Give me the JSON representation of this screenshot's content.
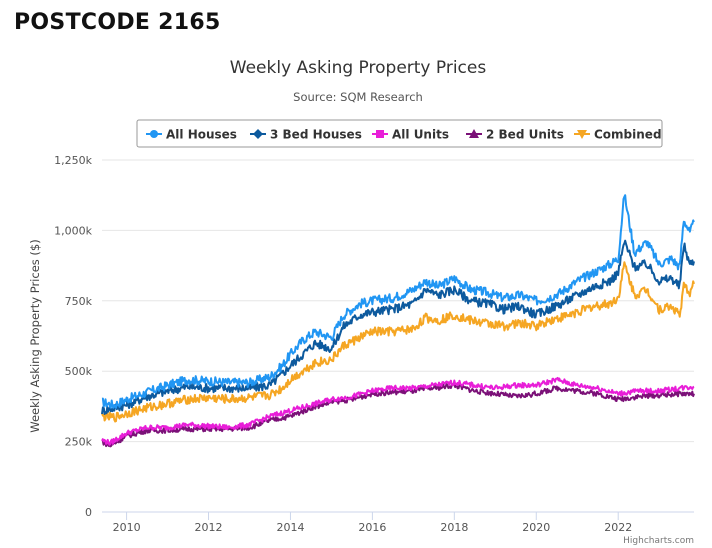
{
  "page": {
    "heading": "POSTCODE 2165"
  },
  "chart_data": {
    "type": "line",
    "title": "Weekly Asking Property Prices",
    "subtitle": "Source: SQM Research",
    "ylabel": "Weekly Asking Property Prices ($)",
    "xlabel": "",
    "ylim": [
      0,
      1250000
    ],
    "xlim": [
      2009.4,
      2023.85
    ],
    "y_ticks": [
      0,
      250000,
      500000,
      750000,
      1000000,
      1250000
    ],
    "y_tick_labels": [
      "0",
      "250k",
      "500k",
      "750k",
      "1,000k",
      "1,250k"
    ],
    "x_ticks": [
      2010,
      2012,
      2014,
      2016,
      2018,
      2020,
      2022
    ],
    "x_tick_labels": [
      "2010",
      "2012",
      "2014",
      "2016",
      "2018",
      "2020",
      "2022"
    ],
    "grid": true,
    "legend_position": "top",
    "credit": "Highcharts.com",
    "series": [
      {
        "name": "All Houses",
        "color": "#2196f3",
        "marker": "circle",
        "x": [
          2009.4,
          2009.7,
          2010.0,
          2010.5,
          2011.0,
          2011.5,
          2012.0,
          2012.5,
          2013.0,
          2013.5,
          2013.8,
          2014.0,
          2014.3,
          2014.6,
          2015.0,
          2015.3,
          2015.7,
          2016.0,
          2016.5,
          2017.0,
          2017.3,
          2017.6,
          2018.0,
          2018.4,
          2018.8,
          2019.2,
          2019.6,
          2020.0,
          2020.3,
          2020.6,
          2021.0,
          2021.4,
          2021.8,
          2022.0,
          2022.15,
          2022.4,
          2022.7,
          2023.0,
          2023.3,
          2023.5,
          2023.6,
          2023.75,
          2023.85
        ],
        "values": [
          390000,
          380000,
          400000,
          425000,
          450000,
          470000,
          465000,
          460000,
          460000,
          480000,
          520000,
          560000,
          610000,
          640000,
          620000,
          700000,
          740000,
          750000,
          760000,
          790000,
          820000,
          800000,
          830000,
          790000,
          780000,
          760000,
          770000,
          750000,
          760000,
          780000,
          820000,
          850000,
          880000,
          900000,
          1130000,
          920000,
          960000,
          880000,
          900000,
          870000,
          1040000,
          990000,
          1030000
        ]
      },
      {
        "name": "3 Bed Houses",
        "color": "#0d5a9e",
        "marker": "diamond",
        "x": [
          2009.4,
          2009.7,
          2010.0,
          2010.5,
          2011.0,
          2011.5,
          2012.0,
          2012.5,
          2013.0,
          2013.5,
          2013.8,
          2014.0,
          2014.3,
          2014.6,
          2015.0,
          2015.3,
          2015.7,
          2016.0,
          2016.5,
          2017.0,
          2017.3,
          2017.6,
          2018.0,
          2018.4,
          2018.8,
          2019.2,
          2019.6,
          2020.0,
          2020.3,
          2020.6,
          2021.0,
          2021.4,
          2021.8,
          2022.0,
          2022.15,
          2022.4,
          2022.7,
          2023.0,
          2023.3,
          2023.5,
          2023.6,
          2023.75,
          2023.85
        ],
        "values": [
          360000,
          370000,
          380000,
          410000,
          430000,
          445000,
          440000,
          440000,
          440000,
          450000,
          490000,
          520000,
          560000,
          600000,
          580000,
          660000,
          700000,
          710000,
          720000,
          740000,
          790000,
          770000,
          790000,
          750000,
          740000,
          720000,
          730000,
          700000,
          720000,
          740000,
          770000,
          800000,
          820000,
          850000,
          960000,
          870000,
          880000,
          820000,
          830000,
          800000,
          950000,
          880000,
          890000
        ]
      },
      {
        "name": "All Units",
        "color": "#e81ed8",
        "marker": "square",
        "x": [
          2009.4,
          2009.6,
          2010.0,
          2010.5,
          2011.0,
          2011.5,
          2012.0,
          2012.5,
          2013.0,
          2013.5,
          2014.0,
          2014.5,
          2015.0,
          2015.5,
          2016.0,
          2016.5,
          2017.0,
          2017.5,
          2018.0,
          2018.5,
          2019.0,
          2019.5,
          2020.0,
          2020.5,
          2021.0,
          2021.5,
          2022.0,
          2022.5,
          2023.0,
          2023.5,
          2023.85
        ],
        "values": [
          255000,
          245000,
          280000,
          300000,
          300000,
          310000,
          305000,
          300000,
          310000,
          340000,
          360000,
          380000,
          400000,
          410000,
          430000,
          440000,
          440000,
          450000,
          460000,
          450000,
          440000,
          450000,
          450000,
          470000,
          450000,
          440000,
          420000,
          430000,
          430000,
          440000,
          445000
        ]
      },
      {
        "name": "2 Bed Units",
        "color": "#7b1178",
        "marker": "triangle",
        "x": [
          2009.4,
          2009.6,
          2010.0,
          2010.5,
          2011.0,
          2011.5,
          2012.0,
          2012.5,
          2013.0,
          2013.5,
          2014.0,
          2014.5,
          2015.0,
          2015.5,
          2016.0,
          2016.5,
          2017.0,
          2017.5,
          2018.0,
          2018.5,
          2019.0,
          2019.5,
          2020.0,
          2020.5,
          2021.0,
          2021.5,
          2022.0,
          2022.5,
          2023.0,
          2023.5,
          2023.85
        ],
        "values": [
          250000,
          235000,
          270000,
          290000,
          290000,
          295000,
          295000,
          295000,
          300000,
          325000,
          340000,
          370000,
          390000,
          400000,
          420000,
          425000,
          430000,
          440000,
          450000,
          430000,
          420000,
          410000,
          420000,
          440000,
          430000,
          420000,
          400000,
          410000,
          415000,
          420000,
          420000
        ]
      },
      {
        "name": "Combined",
        "color": "#f5a623",
        "marker": "triangle-down",
        "x": [
          2009.4,
          2009.7,
          2010.0,
          2010.5,
          2011.0,
          2011.5,
          2012.0,
          2012.5,
          2013.0,
          2013.5,
          2013.8,
          2014.0,
          2014.3,
          2014.6,
          2015.0,
          2015.3,
          2015.7,
          2016.0,
          2016.5,
          2017.0,
          2017.3,
          2017.6,
          2018.0,
          2018.4,
          2018.8,
          2019.2,
          2019.6,
          2020.0,
          2020.3,
          2020.6,
          2021.0,
          2021.4,
          2021.8,
          2022.0,
          2022.15,
          2022.4,
          2022.7,
          2023.0,
          2023.3,
          2023.5,
          2023.6,
          2023.75,
          2023.85
        ],
        "values": [
          340000,
          335000,
          350000,
          370000,
          385000,
          400000,
          405000,
          400000,
          405000,
          415000,
          440000,
          470000,
          500000,
          530000,
          540000,
          590000,
          620000,
          640000,
          640000,
          650000,
          690000,
          680000,
          700000,
          680000,
          670000,
          660000,
          670000,
          660000,
          680000,
          690000,
          710000,
          730000,
          740000,
          760000,
          880000,
          770000,
          790000,
          720000,
          730000,
          700000,
          800000,
          780000,
          810000
        ]
      }
    ]
  }
}
